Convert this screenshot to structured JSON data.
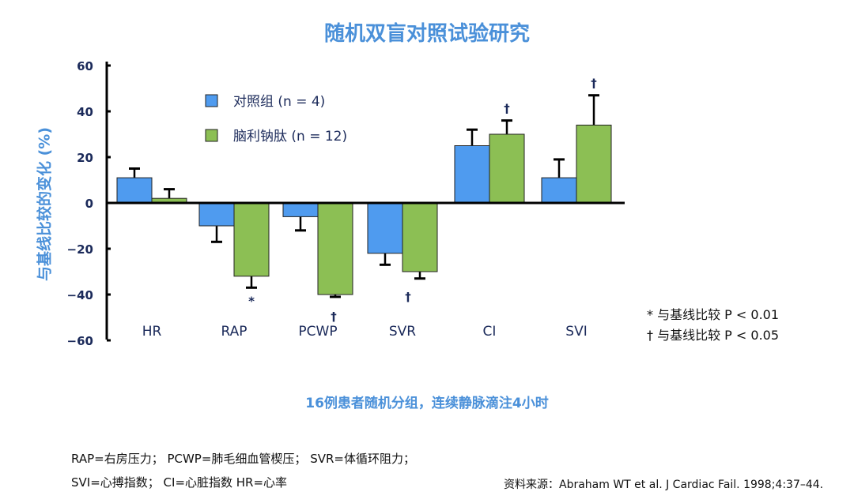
{
  "chart_data": {
    "type": "bar",
    "title": "随机双盲对照试验研究",
    "ylabel": "与基线比较的变化 (%)",
    "xlabel": "",
    "subtitle": "16例患者随机分组，连续静脉滴注4小时",
    "ylim": [
      -60,
      60
    ],
    "yticks": [
      60,
      40,
      20,
      0,
      -20,
      -40,
      -60
    ],
    "yticks_labels": [
      "60",
      "40",
      "20",
      "0",
      "−20",
      "−40",
      "−60"
    ],
    "categories": [
      "HR",
      "RAP",
      "PCWP",
      "SVR",
      "CI",
      "SVI"
    ],
    "series": [
      {
        "name": "对照组 (n = 4)",
        "color": "#4f9bef",
        "values": [
          11,
          -10,
          -6,
          -22,
          25,
          11
        ],
        "error": [
          4,
          7,
          6,
          5,
          7,
          8
        ]
      },
      {
        "name": "脑利钠肽 (n = 12)",
        "color": "#8cbf54",
        "values": [
          2,
          -32,
          -40,
          -30,
          30,
          34
        ],
        "error": [
          4,
          5,
          1,
          3,
          6,
          13
        ],
        "markers": [
          "",
          "*",
          "†",
          "†",
          "†",
          "†"
        ]
      }
    ],
    "legend_position": "top-left",
    "grid": false,
    "footnotes": [
      "* 与基线比较 P < 0.01",
      "† 与基线比较 P < 0.05"
    ]
  },
  "notes": {
    "line1": "RAP=右房压力； PCWP=肺毛细血管楔压； SVR=体循环阻力；",
    "line2": "SVI=心搏指数； CI=心脏指数  HR=心率",
    "source": "资料来源：Abraham WT et al. J Cardiac Fail. 1998;4:37–44."
  }
}
